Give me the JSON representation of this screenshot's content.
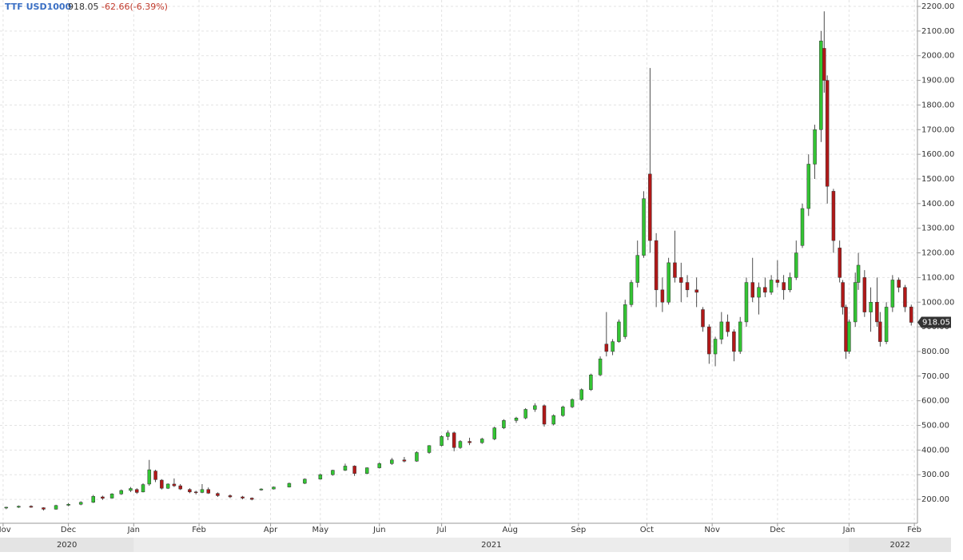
{
  "chart_data": {
    "type": "candlestick",
    "title": "TTF USD1000",
    "last": 918.05,
    "change": "-62.66(-6.39%)",
    "up_color": "#33c433",
    "down_color": "#b01818",
    "grid": true,
    "x": [
      2,
      6,
      10,
      14,
      18,
      22,
      26,
      30,
      33,
      36,
      39,
      42,
      44,
      46,
      48,
      50,
      52,
      54,
      56,
      58,
      61,
      63,
      65,
      67,
      70,
      74,
      78,
      81,
      84,
      88,
      93,
      98,
      103,
      107,
      111,
      114,
      118,
      122,
      126,
      130,
      134,
      138,
      142,
      144,
      146,
      148,
      151,
      155,
      159,
      162,
      166,
      169,
      172,
      175,
      178,
      181,
      184,
      187,
      190,
      193,
      195,
      197,
      199,
      201,
      203,
      205,
      207,
      209,
      211,
      213,
      215,
      217,
      219,
      221,
      224,
      226,
      228,
      230,
      232,
      234,
      236,
      238,
      240,
      242,
      244,
      246,
      248,
      250,
      252,
      254,
      256,
      258,
      260,
      262,
      264,
      265,
      266,
      268,
      270,
      271,
      272,
      273,
      275,
      276,
      278,
      280,
      282,
      283,
      285,
      287,
      289,
      291,
      293
    ],
    "open": [
      165,
      168,
      172,
      166,
      160,
      176,
      180,
      188,
      210,
      205,
      222,
      236,
      240,
      230,
      262,
      315,
      278,
      245,
      262,
      255,
      240,
      230,
      228,
      240,
      224,
      215,
      210,
      205,
      238,
      242,
      250,
      265,
      282,
      300,
      318,
      335,
      305,
      328,
      345,
      360,
      355,
      390,
      418,
      455,
      470,
      410,
      435,
      430,
      445,
      490,
      520,
      530,
      565,
      580,
      505,
      540,
      575,
      605,
      645,
      705,
      830,
      800,
      840,
      860,
      990,
      1080,
      1190,
      1520,
      1250,
      1050,
      1000,
      1160,
      1100,
      1080,
      1050,
      970,
      900,
      790,
      850,
      920,
      880,
      800,
      920,
      1080,
      1020,
      1060,
      1040,
      1090,
      1080,
      1050,
      1100,
      1230,
      1380,
      1560,
      1700,
      2030,
      1900,
      1450,
      1220,
      1080,
      980,
      800,
      920,
      1080,
      1100,
      960,
      1000,
      920,
      840,
      980,
      1090,
      1060,
      980.71
    ],
    "high": [
      170,
      175,
      176,
      168,
      178,
      185,
      192,
      218,
      215,
      225,
      240,
      250,
      245,
      265,
      360,
      320,
      282,
      265,
      285,
      262,
      245,
      235,
      262,
      248,
      228,
      220,
      214,
      208,
      245,
      252,
      268,
      285,
      305,
      320,
      345,
      338,
      330,
      350,
      368,
      372,
      395,
      420,
      460,
      480,
      475,
      440,
      450,
      450,
      495,
      525,
      535,
      570,
      590,
      585,
      545,
      580,
      610,
      650,
      710,
      780,
      960,
      850,
      930,
      1010,
      1090,
      1250,
      1450,
      1950,
      1280,
      1100,
      1180,
      1290,
      1160,
      1110,
      1100,
      980,
      910,
      860,
      960,
      950,
      890,
      940,
      1100,
      1180,
      1080,
      1100,
      1110,
      1170,
      1110,
      1120,
      1250,
      1400,
      1600,
      1720,
      2100,
      2180,
      1920,
      1460,
      1250,
      1090,
      990,
      930,
      1120,
      1200,
      1130,
      1060,
      1100,
      960,
      1000,
      1110,
      1100,
      1070,
      990
    ],
    "low": [
      160,
      165,
      166,
      155,
      158,
      172,
      176,
      185,
      198,
      203,
      218,
      230,
      222,
      228,
      255,
      270,
      240,
      242,
      250,
      238,
      225,
      220,
      225,
      222,
      210,
      205,
      200,
      196,
      235,
      240,
      248,
      262,
      280,
      296,
      315,
      295,
      302,
      325,
      340,
      350,
      352,
      385,
      415,
      440,
      395,
      405,
      420,
      425,
      440,
      485,
      510,
      525,
      555,
      495,
      500,
      535,
      570,
      600,
      640,
      700,
      780,
      785,
      835,
      850,
      980,
      1060,
      1180,
      1200,
      980,
      960,
      990,
      1080,
      1000,
      1020,
      980,
      880,
      750,
      740,
      830,
      860,
      760,
      790,
      900,
      1000,
      950,
      1020,
      1030,
      1060,
      1010,
      1040,
      1090,
      1220,
      1350,
      1500,
      1650,
      1850,
      1400,
      1200,
      1080,
      950,
      770,
      790,
      900,
      1050,
      940,
      880,
      900,
      820,
      830,
      960,
      1040,
      960,
      905
    ],
    "close": [
      168,
      172,
      168,
      160,
      175,
      180,
      188,
      212,
      204,
      222,
      236,
      244,
      228,
      260,
      320,
      280,
      245,
      262,
      255,
      242,
      230,
      228,
      240,
      225,
      215,
      210,
      205,
      200,
      242,
      250,
      265,
      282,
      300,
      318,
      335,
      305,
      328,
      345,
      360,
      355,
      390,
      418,
      455,
      470,
      410,
      435,
      430,
      445,
      490,
      520,
      530,
      565,
      580,
      505,
      540,
      575,
      605,
      645,
      705,
      770,
      800,
      840,
      920,
      990,
      1080,
      1190,
      1420,
      1250,
      1050,
      1000,
      1160,
      1100,
      1080,
      1050,
      1040,
      900,
      790,
      850,
      920,
      880,
      800,
      920,
      1080,
      1020,
      1060,
      1040,
      1090,
      1080,
      1050,
      1100,
      1200,
      1380,
      1560,
      1700,
      2060,
      1900,
      1470,
      1250,
      1100,
      980,
      800,
      920,
      1080,
      1150,
      960,
      1000,
      920,
      840,
      980,
      1090,
      1060,
      980.71,
      918.05
    ],
    "xlim": [
      0,
      295
    ],
    "xticks": [
      {
        "value": 1,
        "label": "Nov"
      },
      {
        "value": 22,
        "label": "Dec"
      },
      {
        "value": 43,
        "label": "Jan"
      },
      {
        "value": 64,
        "label": "Feb"
      },
      {
        "value": 87,
        "label": "Apr"
      },
      {
        "value": 103,
        "label": "May"
      },
      {
        "value": 122,
        "label": "Jun"
      },
      {
        "value": 142,
        "label": "Jul"
      },
      {
        "value": 164,
        "label": "Aug"
      },
      {
        "value": 186,
        "label": "Sep"
      },
      {
        "value": 208,
        "label": "Oct"
      },
      {
        "value": 229,
        "label": "Nov"
      },
      {
        "value": 250,
        "label": "Dec"
      },
      {
        "value": 273,
        "label": "Jan"
      },
      {
        "value": 294,
        "label": "Feb"
      }
    ],
    "years": [
      "2020",
      "2021",
      "2022"
    ],
    "ylim": [
      103,
      2226
    ],
    "yticks": [
      {
        "value": 200,
        "label": "200.00"
      },
      {
        "value": 300,
        "label": "300.00"
      },
      {
        "value": 400,
        "label": "400.00"
      },
      {
        "value": 500,
        "label": "500.00"
      },
      {
        "value": 600,
        "label": "600.00"
      },
      {
        "value": 700,
        "label": "700.00"
      },
      {
        "value": 800,
        "label": "800.00"
      },
      {
        "value": 900,
        "label": "900.00"
      },
      {
        "value": 1000,
        "label": "1000.00"
      },
      {
        "value": 1100,
        "label": "1100.00"
      },
      {
        "value": 1200,
        "label": "1200.00"
      },
      {
        "value": 1300,
        "label": "1300.00"
      },
      {
        "value": 1400,
        "label": "1400.00"
      },
      {
        "value": 1500,
        "label": "1500.00"
      },
      {
        "value": 1600,
        "label": "1600.00"
      },
      {
        "value": 1700,
        "label": "1700.00"
      },
      {
        "value": 1800,
        "label": "1800.00"
      },
      {
        "value": 1900,
        "label": "1900.00"
      },
      {
        "value": 2000,
        "label": "2000.00"
      },
      {
        "value": 2100,
        "label": "2100.00"
      },
      {
        "value": 2200,
        "label": "2200.00"
      }
    ]
  }
}
